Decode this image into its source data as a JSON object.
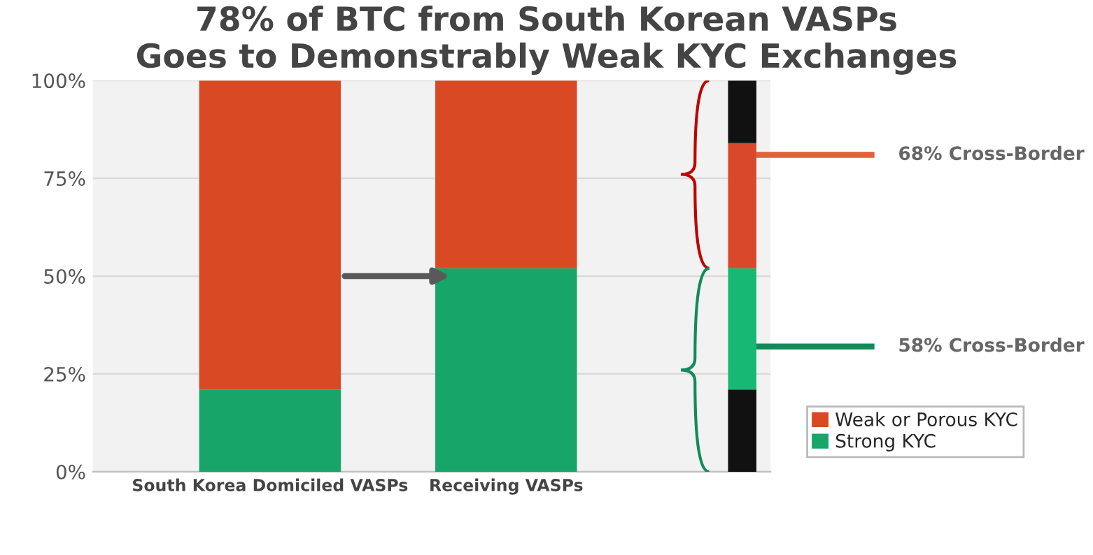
{
  "chart_data": {
    "type": "bar",
    "stacked": true,
    "title": "78% of BTC from South Korean VASPs\nGoes to Demonstrably Weak KYC Exchanges",
    "categories": [
      "South Korea Domiciled VASPs",
      "Receiving VASPs",
      null
    ],
    "series": [
      {
        "name": "Strong KYC",
        "color": "#17a56a",
        "values": [
          21,
          52,
          null
        ]
      },
      {
        "name": "Weak or Porous KYC",
        "color": "#d94a24",
        "values": [
          79,
          48,
          null
        ]
      },
      {
        "color": "#111111",
        "values": [
          null,
          null,
          21
        ]
      },
      {
        "color": "#17b874",
        "values": [
          null,
          null,
          31
        ]
      },
      {
        "color": "#d9482a",
        "values": [
          null,
          null,
          32
        ]
      },
      {
        "color": "#111111",
        "values": [
          null,
          null,
          16
        ]
      }
    ],
    "ylim": [
      0,
      100
    ],
    "yticks": [
      {
        "value": 0,
        "label": "0%"
      },
      {
        "value": 25,
        "label": "25%"
      },
      {
        "value": 50,
        "label": "50%"
      },
      {
        "value": 75,
        "label": "75%"
      },
      {
        "value": 100,
        "label": "100%"
      }
    ],
    "grid": "y",
    "legend": "bottom right",
    "annotations": [
      "68% Cross-Border",
      "58% Cross-Border"
    ]
  }
}
